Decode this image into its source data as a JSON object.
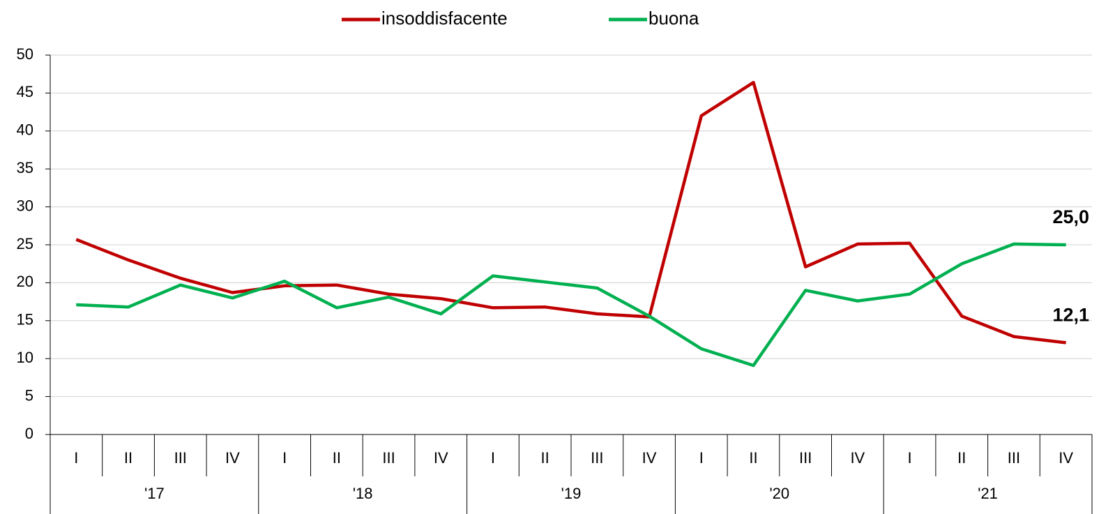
{
  "chart_data": {
    "type": "line",
    "categories": [
      "I",
      "II",
      "III",
      "IV",
      "I",
      "II",
      "III",
      "IV",
      "I",
      "II",
      "III",
      "IV",
      "I",
      "II",
      "III",
      "IV",
      "I",
      "II",
      "III",
      "IV"
    ],
    "category_groups": [
      "'17",
      "'18",
      "'19",
      "'20",
      "'21"
    ],
    "series": [
      {
        "name": "insoddisfacente",
        "color": "#c00000",
        "values": [
          25.7,
          23.0,
          20.6,
          18.7,
          19.6,
          19.7,
          18.5,
          17.9,
          16.7,
          16.8,
          15.9,
          15.5,
          42.0,
          46.4,
          22.1,
          25.1,
          25.2,
          15.6,
          12.9,
          12.1
        ],
        "value_labels": [
          null,
          null,
          null,
          null,
          null,
          null,
          null,
          null,
          null,
          null,
          null,
          null,
          null,
          null,
          null,
          null,
          null,
          null,
          null,
          "12,1"
        ]
      },
      {
        "name": "buona",
        "color": "#00b050",
        "values": [
          17.1,
          16.8,
          19.7,
          18.0,
          20.2,
          16.7,
          18.1,
          15.9,
          20.9,
          20.1,
          19.3,
          15.6,
          11.3,
          9.1,
          19.0,
          17.6,
          18.5,
          22.5,
          25.1,
          25.0
        ],
        "value_labels": [
          null,
          null,
          null,
          null,
          null,
          null,
          null,
          null,
          null,
          null,
          null,
          null,
          null,
          null,
          null,
          null,
          null,
          null,
          null,
          "25,0"
        ]
      }
    ],
    "ylim": [
      0,
      50
    ],
    "yticks": [
      0,
      5,
      10,
      15,
      20,
      25,
      30,
      35,
      40,
      45,
      50
    ],
    "grid": true,
    "legend": "top"
  }
}
